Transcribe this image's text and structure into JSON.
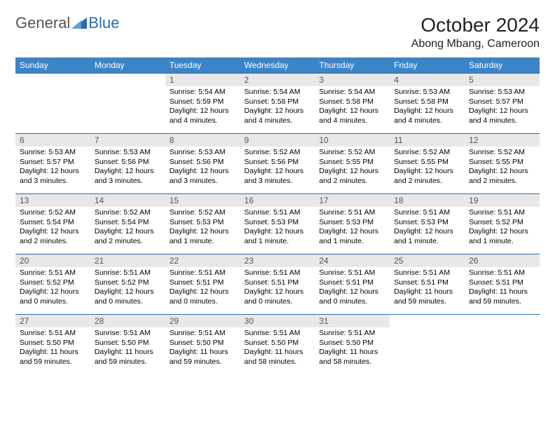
{
  "brand": {
    "part1": "General",
    "part2": "Blue"
  },
  "title": "October 2024",
  "location": "Abong Mbang, Cameroon",
  "colors": {
    "header_bg": "#3d84c6",
    "accent": "#2b6daf",
    "daynum_bg": "#e8e8e8",
    "text": "#000000"
  },
  "weekdays": [
    "Sunday",
    "Monday",
    "Tuesday",
    "Wednesday",
    "Thursday",
    "Friday",
    "Saturday"
  ],
  "weeks": [
    [
      null,
      null,
      {
        "n": "1",
        "sunrise": "5:54 AM",
        "sunset": "5:59 PM",
        "daylight": "12 hours and 4 minutes."
      },
      {
        "n": "2",
        "sunrise": "5:54 AM",
        "sunset": "5:58 PM",
        "daylight": "12 hours and 4 minutes."
      },
      {
        "n": "3",
        "sunrise": "5:54 AM",
        "sunset": "5:58 PM",
        "daylight": "12 hours and 4 minutes."
      },
      {
        "n": "4",
        "sunrise": "5:53 AM",
        "sunset": "5:58 PM",
        "daylight": "12 hours and 4 minutes."
      },
      {
        "n": "5",
        "sunrise": "5:53 AM",
        "sunset": "5:57 PM",
        "daylight": "12 hours and 4 minutes."
      }
    ],
    [
      {
        "n": "6",
        "sunrise": "5:53 AM",
        "sunset": "5:57 PM",
        "daylight": "12 hours and 3 minutes."
      },
      {
        "n": "7",
        "sunrise": "5:53 AM",
        "sunset": "5:56 PM",
        "daylight": "12 hours and 3 minutes."
      },
      {
        "n": "8",
        "sunrise": "5:53 AM",
        "sunset": "5:56 PM",
        "daylight": "12 hours and 3 minutes."
      },
      {
        "n": "9",
        "sunrise": "5:52 AM",
        "sunset": "5:56 PM",
        "daylight": "12 hours and 3 minutes."
      },
      {
        "n": "10",
        "sunrise": "5:52 AM",
        "sunset": "5:55 PM",
        "daylight": "12 hours and 2 minutes."
      },
      {
        "n": "11",
        "sunrise": "5:52 AM",
        "sunset": "5:55 PM",
        "daylight": "12 hours and 2 minutes."
      },
      {
        "n": "12",
        "sunrise": "5:52 AM",
        "sunset": "5:55 PM",
        "daylight": "12 hours and 2 minutes."
      }
    ],
    [
      {
        "n": "13",
        "sunrise": "5:52 AM",
        "sunset": "5:54 PM",
        "daylight": "12 hours and 2 minutes."
      },
      {
        "n": "14",
        "sunrise": "5:52 AM",
        "sunset": "5:54 PM",
        "daylight": "12 hours and 2 minutes."
      },
      {
        "n": "15",
        "sunrise": "5:52 AM",
        "sunset": "5:53 PM",
        "daylight": "12 hours and 1 minute."
      },
      {
        "n": "16",
        "sunrise": "5:51 AM",
        "sunset": "5:53 PM",
        "daylight": "12 hours and 1 minute."
      },
      {
        "n": "17",
        "sunrise": "5:51 AM",
        "sunset": "5:53 PM",
        "daylight": "12 hours and 1 minute."
      },
      {
        "n": "18",
        "sunrise": "5:51 AM",
        "sunset": "5:53 PM",
        "daylight": "12 hours and 1 minute."
      },
      {
        "n": "19",
        "sunrise": "5:51 AM",
        "sunset": "5:52 PM",
        "daylight": "12 hours and 1 minute."
      }
    ],
    [
      {
        "n": "20",
        "sunrise": "5:51 AM",
        "sunset": "5:52 PM",
        "daylight": "12 hours and 0 minutes."
      },
      {
        "n": "21",
        "sunrise": "5:51 AM",
        "sunset": "5:52 PM",
        "daylight": "12 hours and 0 minutes."
      },
      {
        "n": "22",
        "sunrise": "5:51 AM",
        "sunset": "5:51 PM",
        "daylight": "12 hours and 0 minutes."
      },
      {
        "n": "23",
        "sunrise": "5:51 AM",
        "sunset": "5:51 PM",
        "daylight": "12 hours and 0 minutes."
      },
      {
        "n": "24",
        "sunrise": "5:51 AM",
        "sunset": "5:51 PM",
        "daylight": "12 hours and 0 minutes."
      },
      {
        "n": "25",
        "sunrise": "5:51 AM",
        "sunset": "5:51 PM",
        "daylight": "11 hours and 59 minutes."
      },
      {
        "n": "26",
        "sunrise": "5:51 AM",
        "sunset": "5:51 PM",
        "daylight": "11 hours and 59 minutes."
      }
    ],
    [
      {
        "n": "27",
        "sunrise": "5:51 AM",
        "sunset": "5:50 PM",
        "daylight": "11 hours and 59 minutes."
      },
      {
        "n": "28",
        "sunrise": "5:51 AM",
        "sunset": "5:50 PM",
        "daylight": "11 hours and 59 minutes."
      },
      {
        "n": "29",
        "sunrise": "5:51 AM",
        "sunset": "5:50 PM",
        "daylight": "11 hours and 59 minutes."
      },
      {
        "n": "30",
        "sunrise": "5:51 AM",
        "sunset": "5:50 PM",
        "daylight": "11 hours and 58 minutes."
      },
      {
        "n": "31",
        "sunrise": "5:51 AM",
        "sunset": "5:50 PM",
        "daylight": "11 hours and 58 minutes."
      },
      null,
      null
    ]
  ],
  "labels": {
    "sunrise": "Sunrise: ",
    "sunset": "Sunset: ",
    "daylight": "Daylight: "
  }
}
